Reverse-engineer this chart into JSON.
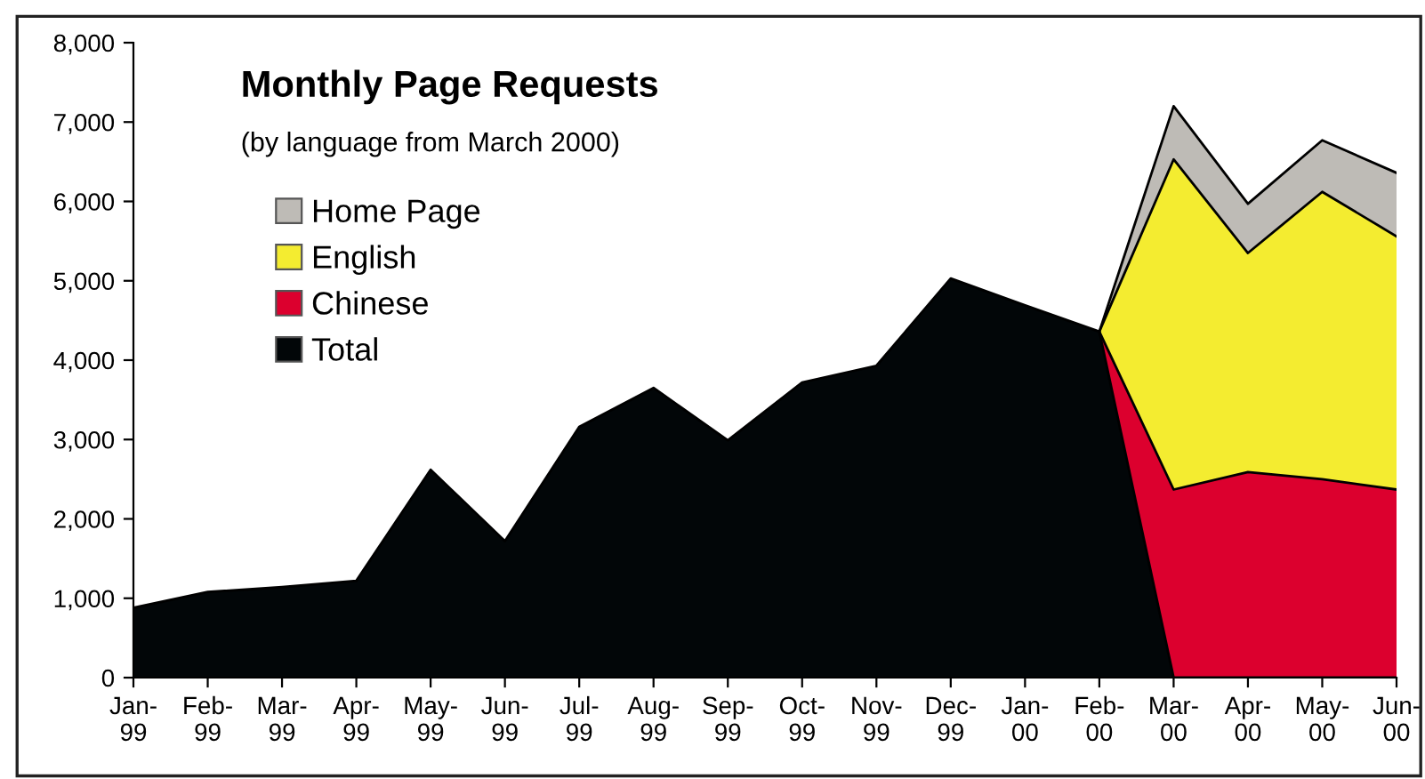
{
  "chart_data": {
    "type": "area",
    "stacked": true,
    "title": "Monthly Page Requests",
    "subtitle": "(by language from March 2000)",
    "categories": [
      "Jan-\n99",
      "Feb-\n99",
      "Mar-\n99",
      "Apr-\n99",
      "May-\n99",
      "Jun-\n99",
      "Jul-\n99",
      "Aug-\n99",
      "Sep-\n99",
      "Oct-\n99",
      "Nov-\n99",
      "Dec-\n99",
      "Jan-\n00",
      "Feb-\n00",
      "Mar-\n00",
      "Apr-\n00",
      "May-\n00",
      "Jun-\n00"
    ],
    "series": [
      {
        "name": "Total",
        "color": "#020608",
        "values": [
          880,
          1080,
          1140,
          1220,
          2620,
          1720,
          3160,
          3650,
          2990,
          3720,
          3930,
          5030,
          4690,
          4360,
          0,
          0,
          0,
          0
        ]
      },
      {
        "name": "Chinese",
        "color": "#dc002e",
        "values": [
          null,
          null,
          null,
          null,
          null,
          null,
          null,
          null,
          null,
          null,
          null,
          null,
          null,
          0,
          2370,
          2590,
          2500,
          2370
        ]
      },
      {
        "name": "English",
        "color": "#f4ec30",
        "values": [
          null,
          null,
          null,
          null,
          null,
          null,
          null,
          null,
          null,
          null,
          null,
          null,
          null,
          0,
          4160,
          2760,
          3620,
          3190
        ]
      },
      {
        "name": "Home Page",
        "color": "#bebbb6",
        "values": [
          null,
          null,
          null,
          null,
          null,
          null,
          null,
          null,
          null,
          null,
          null,
          null,
          null,
          0,
          670,
          620,
          650,
          800
        ]
      }
    ],
    "ylim": [
      0,
      8000
    ],
    "yticks": [
      0,
      {
        "value": 1000,
        "label": "1,000"
      },
      {
        "value": 2000,
        "label": "2,000"
      },
      {
        "value": 3000,
        "label": "3,000"
      },
      {
        "value": 4000,
        "label": "4,000"
      },
      {
        "value": 5000,
        "label": "5,000"
      },
      {
        "value": 6000,
        "label": "6,000"
      },
      {
        "value": 7000,
        "label": "7,000"
      },
      {
        "value": 8000,
        "label": "8,000"
      }
    ],
    "grid": false,
    "legend": "top left"
  }
}
